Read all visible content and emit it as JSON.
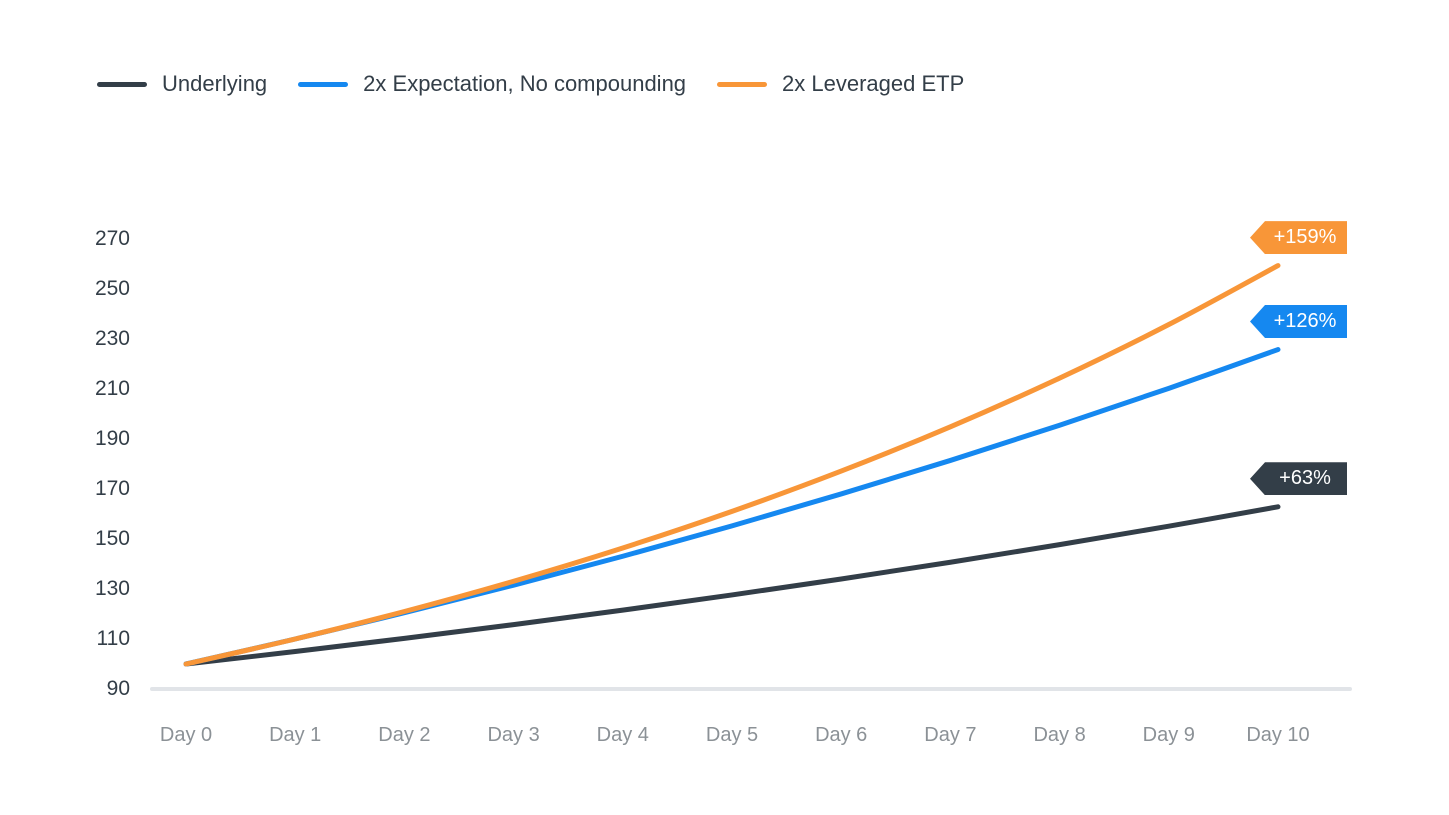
{
  "colors": {
    "background": "#ffffff",
    "axis_line": "#e1e4e8",
    "x_label": "#8b9196",
    "y_label": "#333e48",
    "badge_text": "#ffffff"
  },
  "chart_data": {
    "type": "line",
    "title": "",
    "xlabel": "",
    "ylabel": "",
    "categories": [
      "Day 0",
      "Day 1",
      "Day 2",
      "Day 3",
      "Day 4",
      "Day 5",
      "Day 6",
      "Day 7",
      "Day 8",
      "Day 9",
      "Day 10"
    ],
    "x_values": [
      0,
      1,
      2,
      3,
      4,
      5,
      6,
      7,
      8,
      9,
      10
    ],
    "ylim": [
      90,
      270
    ],
    "y_ticks": [
      90,
      110,
      130,
      150,
      170,
      190,
      210,
      230,
      250,
      270
    ],
    "grid": false,
    "legend_position": "top-left",
    "series": [
      {
        "name": "Underlying",
        "color": "#333e48",
        "end_label": "+63%",
        "values": [
          100,
          105,
          110.25,
          115.76,
          121.55,
          127.63,
          134.01,
          140.71,
          147.75,
          155.13,
          162.89
        ]
      },
      {
        "name": "2x Expectation, No compounding",
        "color": "#1588f0",
        "end_label": "+126%",
        "values": [
          100,
          110,
          120.5,
          131.53,
          143.1,
          155.26,
          168.02,
          181.42,
          195.5,
          210.27,
          225.78
        ]
      },
      {
        "name": "2x Leveraged ETP",
        "color": "#f89638",
        "end_label": "+159%",
        "values": [
          100,
          110,
          121,
          133.1,
          146.41,
          161.05,
          177.16,
          194.87,
          214.36,
          235.79,
          259.37
        ]
      }
    ]
  }
}
